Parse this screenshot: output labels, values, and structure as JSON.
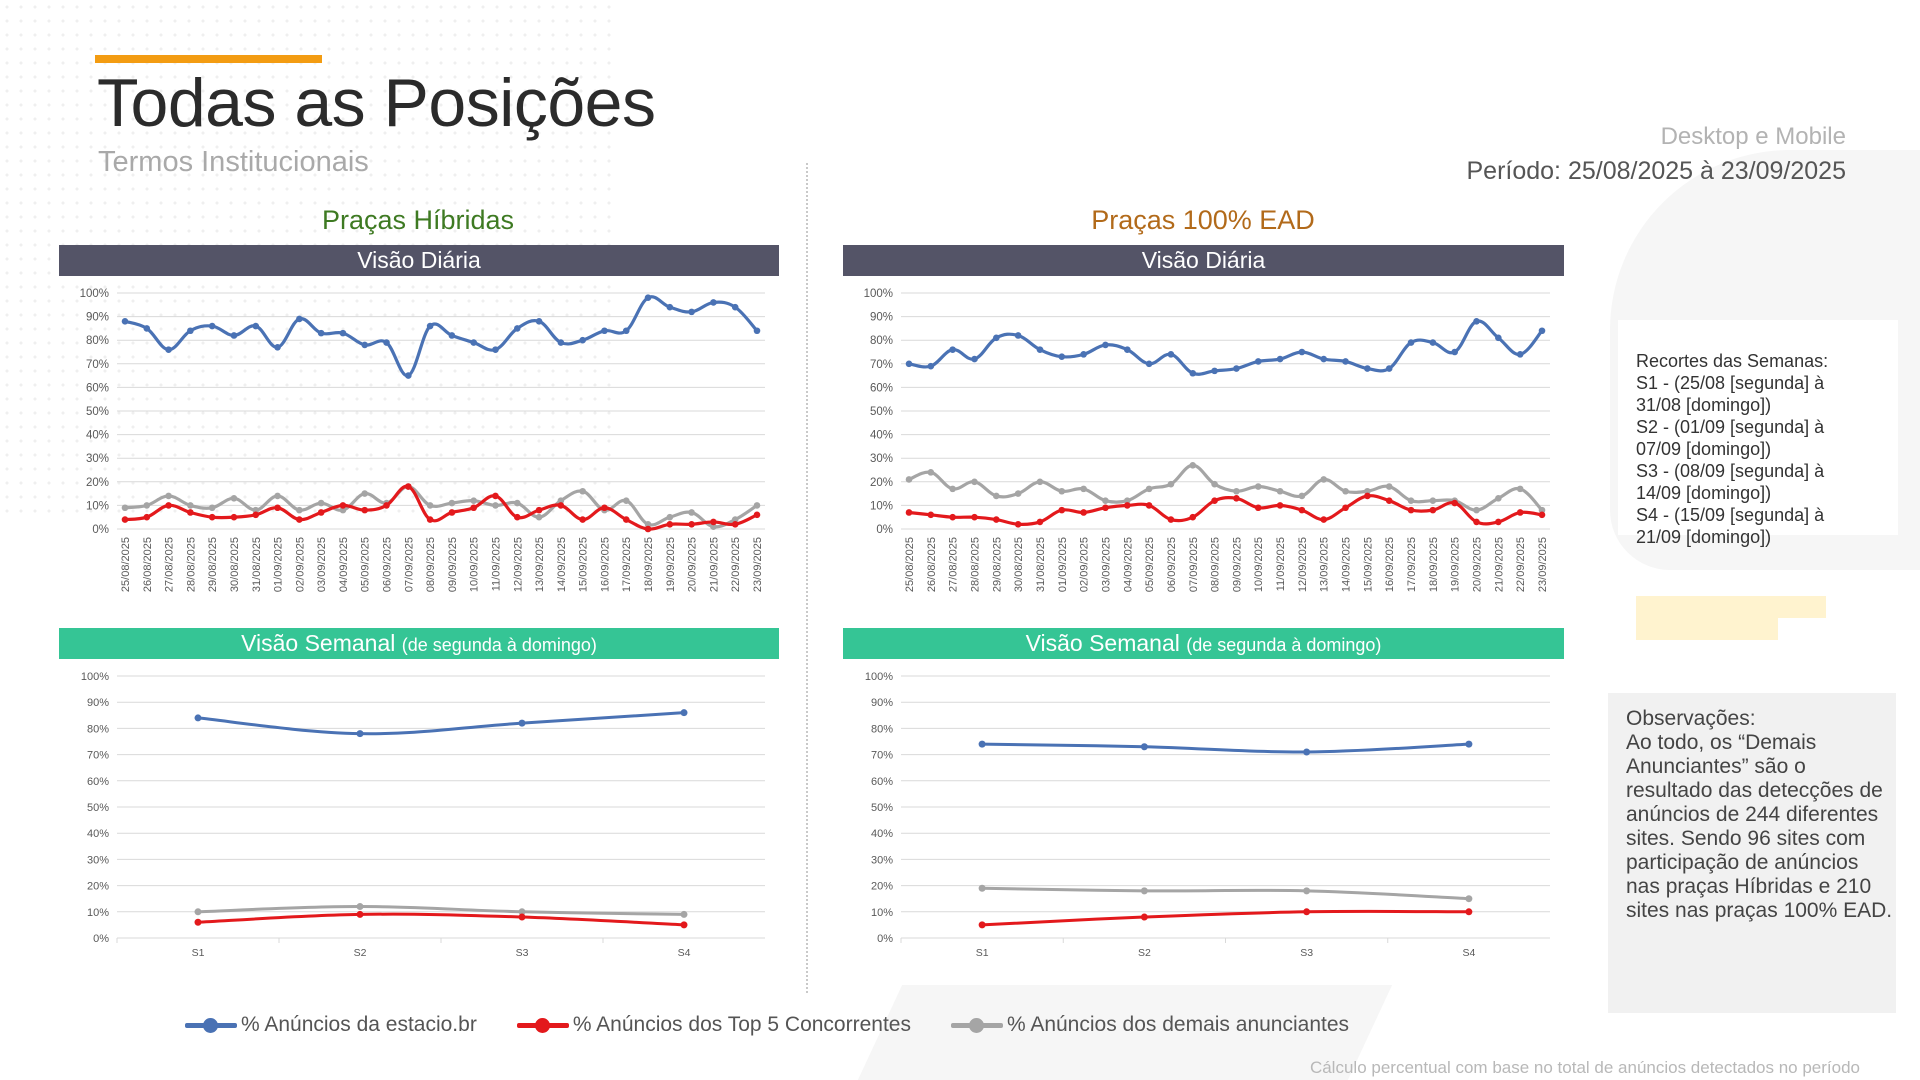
{
  "header": {
    "title": "Todas as Posições",
    "subtitle": "Termos Institucionais",
    "device": "Desktop e Mobile",
    "period": "Período: 25/08/2025 à 23/09/2025"
  },
  "left": {
    "title": "Praças Híbridas",
    "daily_header": "Visão Diária",
    "weekly_header": "Visão Semanal",
    "weekly_header_note": "(de segunda à domingo)"
  },
  "right": {
    "title": "Praças 100% EAD",
    "daily_header": "Visão Diária",
    "weekly_header": "Visão Semanal",
    "weekly_header_note": "(de segunda à domingo)"
  },
  "colors": {
    "blue": "#4a72b4",
    "red": "#e3191c",
    "gray": "#a5a5a5",
    "left_title": "#3e7a22",
    "right_title": "#b26a1a"
  },
  "legend": [
    {
      "label": "% Anúncios da estacio.br",
      "color": "#4a72b4"
    },
    {
      "label": "% Anúncios dos Top 5 Concorrentes",
      "color": "#e3191c"
    },
    {
      "label": "% Anúncios dos demais anunciantes",
      "color": "#a5a5a5"
    }
  ],
  "weeks": {
    "title": "Recortes das Semanas:",
    "items": [
      "S1 - (25/08 [segunda] à\n31/08 [domingo])",
      "S2 - (01/09 [segunda] à\n07/09 [domingo])",
      "S3 - (08/09 [segunda] à\n14/09 [domingo])",
      "S4 - (15/09 [segunda] à\n21/09 [domingo])"
    ]
  },
  "observations": {
    "title": "Observações:",
    "text": "Ao todo, os “Demais Anunciantes” são o resultado das detecções de anúncios de 244 diferentes sites. Sendo 96 sites com participação de anúncios nas praças Híbridas e 210 sites nas praças 100% EAD."
  },
  "footnote": "Cálculo percentual com base no total de anúncios detectados no período",
  "chart_data": [
    {
      "id": "hibridas_diaria",
      "type": "line",
      "title": "Praças Híbridas - Visão Diária",
      "ylim": [
        0,
        100
      ],
      "yticks": [
        "0%",
        "10%",
        "20%",
        "30%",
        "40%",
        "50%",
        "60%",
        "70%",
        "80%",
        "90%",
        "100%"
      ],
      "categories": [
        "25/08/2025",
        "26/08/2025",
        "27/08/2025",
        "28/08/2025",
        "29/08/2025",
        "30/08/2025",
        "31/08/2025",
        "01/09/2025",
        "02/09/2025",
        "03/09/2025",
        "04/09/2025",
        "05/09/2025",
        "06/09/2025",
        "07/09/2025",
        "08/09/2025",
        "09/09/2025",
        "10/09/2025",
        "11/09/2025",
        "12/09/2025",
        "13/09/2025",
        "14/09/2025",
        "15/09/2025",
        "16/09/2025",
        "17/09/2025",
        "18/09/2025",
        "19/09/2025",
        "20/09/2025",
        "21/09/2025",
        "22/09/2025",
        "23/09/2025"
      ],
      "series": [
        {
          "name": "% Anúncios da estacio.br",
          "color": "#4a72b4",
          "values": [
            88,
            85,
            76,
            84,
            86,
            82,
            86,
            77,
            89,
            83,
            83,
            78,
            79,
            65,
            86,
            82,
            79,
            76,
            85,
            88,
            79,
            80,
            84,
            84,
            98,
            94,
            92,
            96,
            94,
            84
          ]
        },
        {
          "name": "% Anúncios dos Top 5 Concorrentes",
          "color": "#e3191c",
          "values": [
            4,
            5,
            10,
            7,
            5,
            5,
            6,
            9,
            4,
            7,
            10,
            8,
            10,
            18,
            4,
            7,
            9,
            14,
            5,
            8,
            10,
            4,
            9,
            4,
            0,
            2,
            2,
            3,
            2,
            6
          ]
        },
        {
          "name": "% Anúncios dos demais anunciantes",
          "color": "#a5a5a5",
          "values": [
            9,
            10,
            14,
            10,
            9,
            13,
            8,
            14,
            8,
            11,
            8,
            15,
            11,
            18,
            10,
            11,
            12,
            10,
            11,
            5,
            12,
            16,
            8,
            12,
            2,
            5,
            7,
            1,
            4,
            10
          ]
        }
      ]
    },
    {
      "id": "ead_diaria",
      "type": "line",
      "title": "Praças 100% EAD - Visão Diária",
      "ylim": [
        0,
        100
      ],
      "yticks": [
        "0%",
        "10%",
        "20%",
        "30%",
        "40%",
        "50%",
        "60%",
        "70%",
        "80%",
        "90%",
        "100%"
      ],
      "categories": [
        "25/08/2025",
        "26/08/2025",
        "27/08/2025",
        "28/08/2025",
        "29/08/2025",
        "30/08/2025",
        "31/08/2025",
        "01/09/2025",
        "02/09/2025",
        "03/09/2025",
        "04/09/2025",
        "05/09/2025",
        "06/09/2025",
        "07/09/2025",
        "08/09/2025",
        "09/09/2025",
        "10/09/2025",
        "11/09/2025",
        "12/09/2025",
        "13/09/2025",
        "14/09/2025",
        "15/09/2025",
        "16/09/2025",
        "17/09/2025",
        "18/09/2025",
        "19/09/2025",
        "20/09/2025",
        "21/09/2025",
        "22/09/2025",
        "23/09/2025"
      ],
      "series": [
        {
          "name": "% Anúncios da estacio.br",
          "color": "#4a72b4",
          "values": [
            70,
            69,
            76,
            72,
            81,
            82,
            76,
            73,
            74,
            78,
            76,
            70,
            74,
            66,
            67,
            68,
            71,
            72,
            75,
            72,
            71,
            68,
            68,
            79,
            79,
            75,
            88,
            81,
            74,
            84
          ]
        },
        {
          "name": "% Anúncios dos Top 5 Concorrentes",
          "color": "#e3191c",
          "values": [
            7,
            6,
            5,
            5,
            4,
            2,
            3,
            8,
            7,
            9,
            10,
            10,
            4,
            5,
            12,
            13,
            9,
            10,
            8,
            4,
            9,
            14,
            12,
            8,
            8,
            11,
            3,
            3,
            7,
            6
          ]
        },
        {
          "name": "% Anúncios dos demais anunciantes",
          "color": "#a5a5a5",
          "values": [
            21,
            24,
            17,
            20,
            14,
            15,
            20,
            16,
            17,
            12,
            12,
            17,
            19,
            27,
            19,
            16,
            18,
            16,
            14,
            21,
            16,
            16,
            18,
            12,
            12,
            12,
            8,
            13,
            17,
            8
          ]
        }
      ]
    },
    {
      "id": "hibridas_semanal",
      "type": "line",
      "title": "Praças Híbridas - Visão Semanal",
      "ylim": [
        0,
        100
      ],
      "yticks": [
        "0%",
        "10%",
        "20%",
        "30%",
        "40%",
        "50%",
        "60%",
        "70%",
        "80%",
        "90%",
        "100%"
      ],
      "categories": [
        "S1",
        "S2",
        "S3",
        "S4"
      ],
      "series": [
        {
          "name": "% Anúncios da estacio.br",
          "color": "#4a72b4",
          "values": [
            84,
            78,
            82,
            86
          ]
        },
        {
          "name": "% Anúncios dos Top 5 Concorrentes",
          "color": "#e3191c",
          "values": [
            6,
            9,
            8,
            5
          ]
        },
        {
          "name": "% Anúncios dos demais anunciantes",
          "color": "#a5a5a5",
          "values": [
            10,
            12,
            10,
            9
          ]
        }
      ]
    },
    {
      "id": "ead_semanal",
      "type": "line",
      "title": "Praças 100% EAD - Visão Semanal",
      "ylim": [
        0,
        100
      ],
      "yticks": [
        "0%",
        "10%",
        "20%",
        "30%",
        "40%",
        "50%",
        "60%",
        "70%",
        "80%",
        "90%",
        "100%"
      ],
      "categories": [
        "S1",
        "S2",
        "S3",
        "S4"
      ],
      "series": [
        {
          "name": "% Anúncios da estacio.br",
          "color": "#4a72b4",
          "values": [
            74,
            73,
            71,
            74
          ]
        },
        {
          "name": "% Anúncios dos Top 5 Concorrentes",
          "color": "#e3191c",
          "values": [
            5,
            8,
            10,
            10
          ]
        },
        {
          "name": "% Anúncios dos demais anunciantes",
          "color": "#a5a5a5",
          "values": [
            19,
            18,
            18,
            15
          ]
        }
      ]
    }
  ]
}
